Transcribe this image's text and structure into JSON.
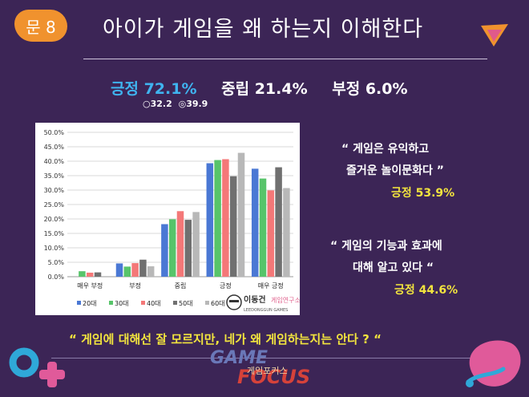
{
  "header": {
    "badge": "문 8",
    "title": "아이가 게임을 왜 하는지 이해한다"
  },
  "summary": {
    "positive": "긍정 72.1%",
    "neutral": "중립 21.4%",
    "negative": "부정 6.0%",
    "sub1": "○32.2",
    "sub2": "◎39.9"
  },
  "chart_data": {
    "type": "bar",
    "categories": [
      "매우 부정",
      "부정",
      "중립",
      "긍정",
      "매우 긍정"
    ],
    "series": [
      {
        "name": "20대",
        "color": "#4a78d4",
        "values": [
          0.0,
          4.6,
          18.2,
          39.3,
          37.4
        ]
      },
      {
        "name": "30대",
        "color": "#57c46a",
        "values": [
          1.9,
          3.5,
          19.9,
          40.4,
          34.0
        ]
      },
      {
        "name": "40대",
        "color": "#f47878",
        "values": [
          1.4,
          4.7,
          22.7,
          40.7,
          29.9
        ]
      },
      {
        "name": "50대",
        "color": "#707070",
        "values": [
          1.5,
          5.9,
          19.7,
          34.8,
          37.9
        ]
      },
      {
        "name": "60대",
        "color": "#b8b8b8",
        "values": [
          0.0,
          3.6,
          22.4,
          42.9,
          30.7
        ]
      }
    ],
    "yticks": [
      "0.0%",
      "5.0%",
      "10.0%",
      "15.0%",
      "20.0%",
      "25.0%",
      "30.0%",
      "35.0%",
      "40.0%",
      "45.0%",
      "50.0%"
    ],
    "ylim": [
      0,
      50
    ],
    "grid": true,
    "legend": "bottom"
  },
  "chart_logo": {
    "name": "이동건",
    "lab": "게임연구소",
    "sub": "LEEDONGGUN GAMES"
  },
  "quotes": [
    {
      "line1": "“ 게임은 유익하고",
      "line2": "즐거운 놀이문화다 ”",
      "stat": "긍정 53.9%"
    },
    {
      "line1": "“ 게임의 기능과 효과에",
      "line2": "대해 알고 있다 “",
      "stat": "긍정 44.6%"
    }
  ],
  "bottom_quote": "“ 게임에 대해선 잘 모르지만, 네가 왜 게임하는지는 안다 ? “",
  "footer_logo": {
    "word1": "GAME",
    "word2": "FOCUS",
    "sub": "게임포커스"
  }
}
